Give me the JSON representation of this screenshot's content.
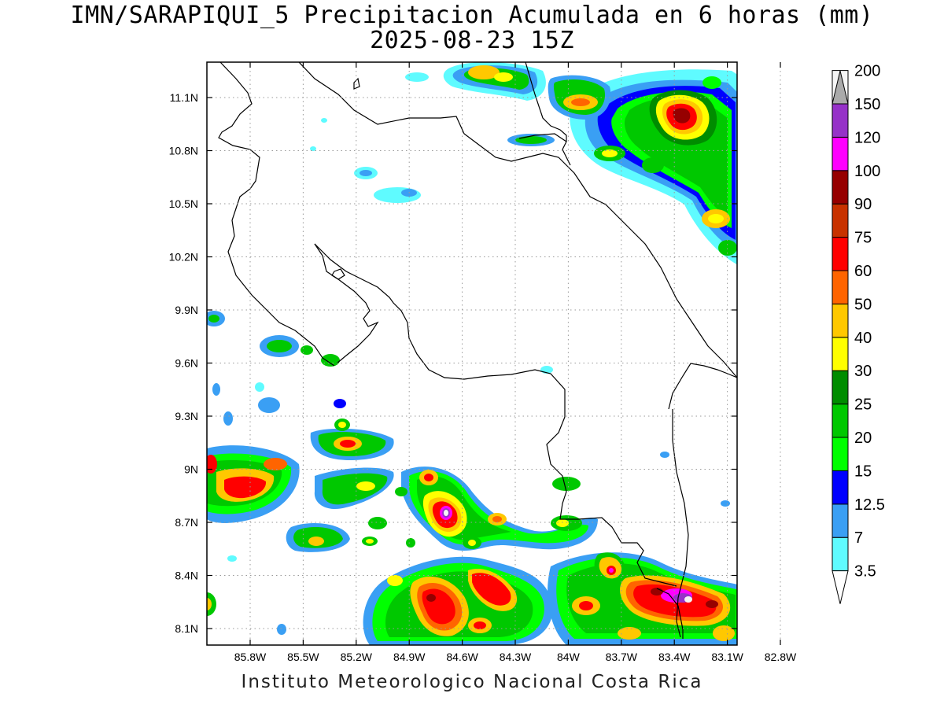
{
  "title": {
    "line1": "IMN/SARAPIQUI_5 Precipitacion Acumulada en 6 horas (mm)",
    "line2": "2025-08-23 15Z"
  },
  "credit": "Instituto Meteorologico Nacional Costa Rica",
  "map": {
    "lon_range": [
      -86.0,
      -83.0
    ],
    "lat_range": [
      8.0,
      11.3
    ],
    "x_ticks": [
      "85.8W",
      "85.5W",
      "85.2W",
      "84.9W",
      "84.6W",
      "84.3W",
      "84W",
      "83.7W",
      "83.4W",
      "83.1W",
      "82.8W"
    ],
    "y_ticks": [
      "11.1N",
      "10.8N",
      "10.5N",
      "10.2N",
      "9.9N",
      "9.6N",
      "9.3N",
      "9N",
      "8.7N",
      "8.4N",
      "8.1N"
    ],
    "grid": "dotted"
  },
  "colorbar": {
    "labels": [
      "3.5",
      "7",
      "12.5",
      "15",
      "20",
      "25",
      "30",
      "40",
      "50",
      "60",
      "75",
      "90",
      "100",
      "120",
      "150",
      "200"
    ],
    "colors": [
      "#5ffbff",
      "#3a9ff4",
      "#0000ff",
      "#00ff00",
      "#00c800",
      "#008c00",
      "#ffff00",
      "#ffc800",
      "#ff6400",
      "#ff0000",
      "#c83200",
      "#960000",
      "#ff00ff",
      "#9632c8",
      "#f5f5f5",
      "#aaaaaa"
    ]
  }
}
